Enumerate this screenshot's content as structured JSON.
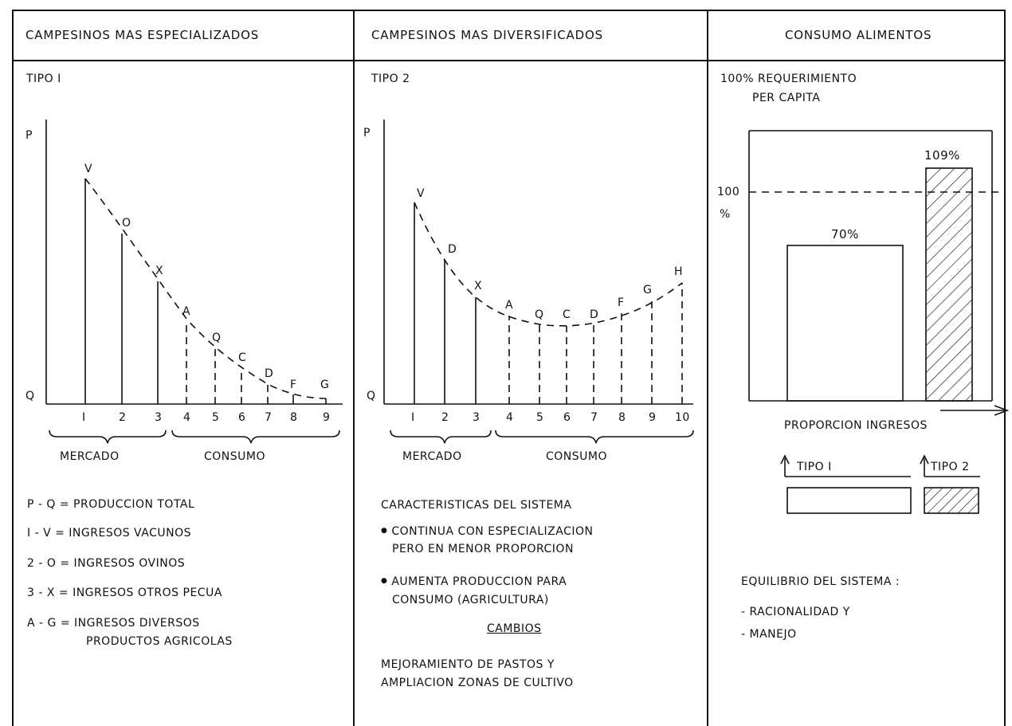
{
  "columns": {
    "col1": {
      "header": "CAMPESINOS   MAS  ESPECIALIZADOS",
      "tipo": "TIPO  I"
    },
    "col2": {
      "header": "CAMPESINOS  MAS DIVERSIFICADOS",
      "tipo": "TIPO  2"
    },
    "col3": {
      "header": "CONSUMO ALIMENTOS",
      "req_line1": "100%  REQUERIMIENTO",
      "req_line2": "PER CAPITA"
    }
  },
  "chart1": {
    "axis_p": "P",
    "axis_q": "Q",
    "x_ticks": [
      "I",
      "2",
      "3",
      "4",
      "5",
      "6",
      "7",
      "8",
      "9"
    ],
    "point_labels": [
      "V",
      "O",
      "X",
      "A",
      "Q",
      "C",
      "D",
      "F",
      "G"
    ],
    "bracket_mercado": "MERCADO",
    "bracket_consumo": "CONSUMO"
  },
  "chart2": {
    "axis_p": "P",
    "axis_q": "Q",
    "x_ticks": [
      "I",
      "2",
      "3",
      "4",
      "5",
      "6",
      "7",
      "8",
      "9",
      "10"
    ],
    "point_labels": [
      "V",
      "D",
      "X",
      "A",
      "Q",
      "C",
      "D",
      "F",
      "G",
      "H"
    ],
    "bracket_mercado": "MERCADO",
    "bracket_consumo": "CONSUMO"
  },
  "chart3": {
    "y_label_100": "100",
    "y_label_pct": "%",
    "bar1_label": "70%",
    "bar2_label": "109%",
    "x_label": "PROPORCION    INGRESOS",
    "legend_tipo1": "TIPO  I",
    "legend_tipo2": "TIPO  2"
  },
  "chart_data": {
    "type": "bar",
    "categories": [
      "TIPO I",
      "TIPO 2"
    ],
    "values": [
      70,
      109
    ],
    "title": "CONSUMO ALIMENTOS",
    "ylabel": "100 %"
  },
  "legend1": [
    "P - Q  =  PRODUCCION  TOTAL",
    "I  - V  =  INGRESOS  VACUNOS",
    "2 - O  =  INGRESOS  OVINOS",
    "3 - X  =  INGRESOS  OTROS PECUA",
    "A - G  =  INGRESOS  DIVERSOS",
    "PRODUCTOS  AGRICOLAS"
  ],
  "text2": {
    "heading": "CARACTERISTICAS DEL SISTEMA",
    "bullet1_a": "CONTINUA CON ESPECIALIZACION",
    "bullet1_b": "PERO EN  MENOR PROPORCION",
    "bullet2_a": "AUMENTA  PRODUCCION PARA",
    "bullet2_b": "CONSUMO (AGRICULTURA)",
    "cambios": "CAMBIOS",
    "mej_a": "MEJORAMIENTO DE PASTOS  Y",
    "mej_b": "AMPLIACION  ZONAS DE CULTIVO"
  },
  "text3": {
    "equilibrio": "EQUILIBRIO  DEL  SISTEMA :",
    "item1": "- RACIONALIDAD  Y",
    "item2": "- MANEJO"
  }
}
